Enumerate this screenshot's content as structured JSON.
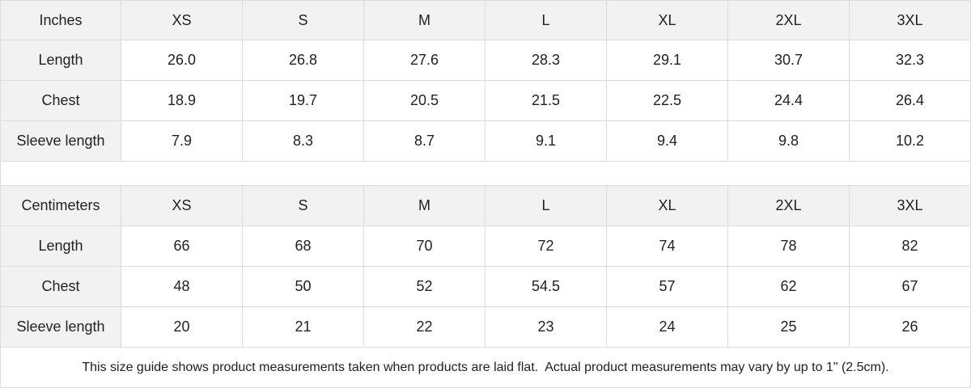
{
  "tables": [
    {
      "unit": "Inches",
      "sizes": [
        "XS",
        "S",
        "M",
        "L",
        "XL",
        "2XL",
        "3XL"
      ],
      "rows": [
        {
          "label": "Length",
          "values": [
            "26.0",
            "26.8",
            "27.6",
            "28.3",
            "29.1",
            "30.7",
            "32.3"
          ]
        },
        {
          "label": "Chest",
          "values": [
            "18.9",
            "19.7",
            "20.5",
            "21.5",
            "22.5",
            "24.4",
            "26.4"
          ]
        },
        {
          "label": "Sleeve length",
          "values": [
            "7.9",
            "8.3",
            "8.7",
            "9.1",
            "9.4",
            "9.8",
            "10.2"
          ]
        }
      ]
    },
    {
      "unit": "Centimeters",
      "sizes": [
        "XS",
        "S",
        "M",
        "L",
        "XL",
        "2XL",
        "3XL"
      ],
      "rows": [
        {
          "label": "Length",
          "values": [
            "66",
            "68",
            "70",
            "72",
            "74",
            "78",
            "82"
          ]
        },
        {
          "label": "Chest",
          "values": [
            "48",
            "50",
            "52",
            "54.5",
            "57",
            "62",
            "67"
          ]
        },
        {
          "label": "Sleeve length",
          "values": [
            "20",
            "21",
            "22",
            "23",
            "24",
            "25",
            "26"
          ]
        }
      ]
    }
  ],
  "note": "This size guide shows product measurements taken when products are laid flat.  Actual product measurements may vary by up to 1\" (2.5cm).",
  "colors": {
    "header_bg": "#f2f2f2",
    "border": "#dcdcdc"
  }
}
